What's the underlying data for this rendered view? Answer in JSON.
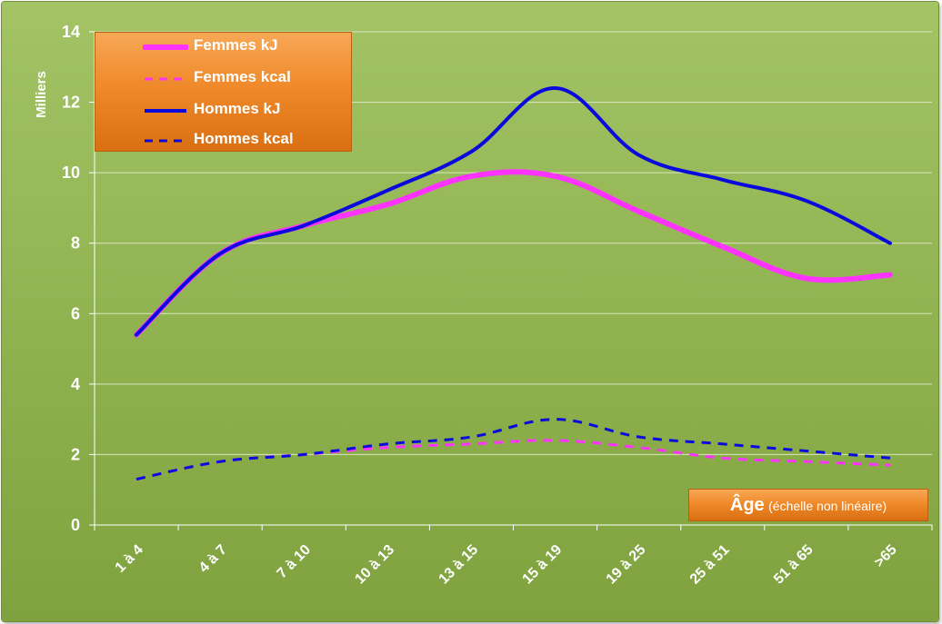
{
  "chart_data": {
    "type": "line",
    "categories": [
      "1 à 4",
      "4 à 7",
      "7 à 10",
      "10 à 13",
      "13 à 15",
      "15 à 19",
      "19 à 25",
      "25 à 51",
      "51 à 65",
      ">65"
    ],
    "ylabel": "Milliers",
    "xlabel": "Âge",
    "xlabel_note": "(échelle non linéaire)",
    "ylim": [
      0,
      14
    ],
    "yticks": [
      0,
      2,
      4,
      6,
      8,
      10,
      12,
      14
    ],
    "grid": true,
    "legend_position": "top-left",
    "series": [
      {
        "name": "Femmes kJ",
        "style": "solid-thick",
        "color": "#ff33ff",
        "values": [
          5.4,
          7.7,
          8.5,
          9.1,
          9.9,
          9.9,
          8.9,
          7.9,
          7.0,
          7.1
        ]
      },
      {
        "name": "Femmes kcal",
        "style": "dashed",
        "color": "#ff33ff",
        "values": [
          1.3,
          1.8,
          2.0,
          2.2,
          2.3,
          2.4,
          2.2,
          1.9,
          1.8,
          1.7
        ]
      },
      {
        "name": "Hommes kJ",
        "style": "solid",
        "color": "#0a0adc",
        "values": [
          5.4,
          7.7,
          8.5,
          9.5,
          10.6,
          12.4,
          10.5,
          9.8,
          9.2,
          8.0
        ]
      },
      {
        "name": "Hommes kcal",
        "style": "dashed",
        "color": "#0a0adc",
        "values": [
          1.3,
          1.8,
          2.0,
          2.3,
          2.5,
          3.0,
          2.5,
          2.3,
          2.1,
          1.9
        ]
      }
    ]
  }
}
